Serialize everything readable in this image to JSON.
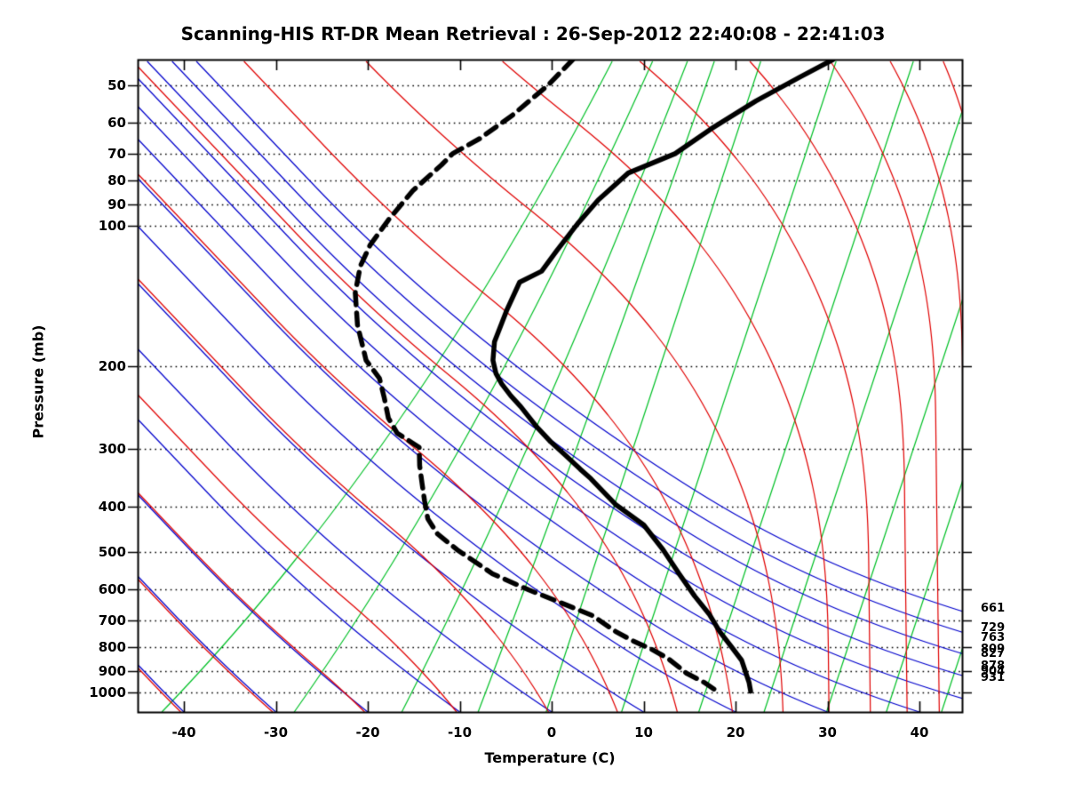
{
  "title": "Scanning-HIS RT-DR Mean Retrieval : 26-Sep-2012 22:40:08 - 22:41:03",
  "axes": {
    "x": {
      "label": "Temperature (C)",
      "ticks": [
        -40,
        -30,
        -20,
        -10,
        0,
        10,
        20,
        30,
        40
      ],
      "range_c": [
        -45,
        45
      ]
    },
    "y": {
      "label": "Pressure (mb)",
      "ticks": [
        50,
        60,
        70,
        80,
        90,
        100,
        200,
        300,
        400,
        500,
        600,
        700,
        800,
        900,
        1000
      ],
      "range_mb": [
        44,
        1100
      ],
      "scale": "log",
      "gridline_style": "dotted"
    }
  },
  "side_pressure_labels": [
    661,
    729,
    763,
    809,
    827,
    878,
    904,
    931
  ],
  "colors": {
    "temperature_curve": "#000000",
    "dewpoint_curve": "#000000",
    "moist_family": "#e00000",
    "dry_family": "#0000cc",
    "mixing_family": "#00c026",
    "grid": "#000000",
    "frame": "#000000",
    "background": "#ffffff"
  },
  "chart_data": {
    "type": "line",
    "subtype": "skewt_log_p",
    "title": "Scanning-HIS RT-DR Mean Retrieval : 26-Sep-2012 22:40:08 - 22:41:03",
    "xlabel": "Temperature (C)",
    "ylabel": "Pressure (mb)",
    "x_range_c": [
      -45,
      45
    ],
    "pressure_range_mb": [
      44,
      1100
    ],
    "legend": "none",
    "grid": "horizontal dotted at pressure ticks",
    "series": [
      {
        "name": "temperature",
        "style": "solid",
        "points_p_t": [
          [
            44,
            7.2
          ],
          [
            48,
            4.2
          ],
          [
            54,
            0.3
          ],
          [
            62,
            -3.6
          ],
          [
            70,
            -6.6
          ],
          [
            77,
            -11.0
          ],
          [
            88,
            -13.3
          ],
          [
            99,
            -14.7
          ],
          [
            113,
            -16.0
          ],
          [
            125,
            -16.9
          ],
          [
            132,
            -18.9
          ],
          [
            152,
            -19.3
          ],
          [
            177,
            -19.5
          ],
          [
            194,
            -19.0
          ],
          [
            207,
            -18.2
          ],
          [
            218,
            -17.2
          ],
          [
            231,
            -15.8
          ],
          [
            244,
            -14.3
          ],
          [
            270,
            -11.8
          ],
          [
            290,
            -9.8
          ],
          [
            310,
            -7.7
          ],
          [
            332,
            -5.6
          ],
          [
            348,
            -4.1
          ],
          [
            367,
            -2.6
          ],
          [
            395,
            -0.5
          ],
          [
            437,
            3.3
          ],
          [
            494,
            6.3
          ],
          [
            556,
            8.9
          ],
          [
            621,
            11.4
          ],
          [
            678,
            13.6
          ],
          [
            740,
            15.4
          ],
          [
            797,
            17.2
          ],
          [
            852,
            18.8
          ],
          [
            950,
            20.4
          ],
          [
            993,
            20.9
          ]
        ]
      },
      {
        "name": "dewpoint",
        "style": "dashed",
        "points_p_t": [
          [
            44,
            -21.1
          ],
          [
            50,
            -22.9
          ],
          [
            58,
            -25.7
          ],
          [
            65,
            -28.4
          ],
          [
            70,
            -30.8
          ],
          [
            74,
            -31.6
          ],
          [
            84,
            -33.8
          ],
          [
            97,
            -35.4
          ],
          [
            110,
            -36.5
          ],
          [
            122,
            -36.8
          ],
          [
            139,
            -36.4
          ],
          [
            163,
            -35.0
          ],
          [
            194,
            -32.8
          ],
          [
            212,
            -30.7
          ],
          [
            233,
            -29.5
          ],
          [
            258,
            -28.3
          ],
          [
            278,
            -26.8
          ],
          [
            298,
            -23.9
          ],
          [
            326,
            -23.2
          ],
          [
            356,
            -22.3
          ],
          [
            388,
            -21.4
          ],
          [
            424,
            -20.4
          ],
          [
            457,
            -18.8
          ],
          [
            494,
            -16.1
          ],
          [
            556,
            -11.4
          ],
          [
            602,
            -6.9
          ],
          [
            648,
            -2.3
          ],
          [
            684,
            1.0
          ],
          [
            740,
            4.1
          ],
          [
            773,
            6.2
          ],
          [
            807,
            8.6
          ],
          [
            844,
            10.7
          ],
          [
            909,
            13.3
          ],
          [
            950,
            15.5
          ],
          [
            984,
            16.9
          ]
        ]
      }
    ],
    "background_isopleths": {
      "dry_family_bottom_temps_c": [
        -90,
        -80,
        -70,
        -60,
        -50,
        -40,
        -30,
        -20,
        -10,
        0,
        10,
        20,
        30,
        40,
        50,
        60,
        70,
        80,
        90
      ],
      "moist_family_bottom_temps_c": [
        -90,
        -80,
        -70,
        -60,
        -50,
        -40,
        -30,
        -20,
        -10,
        0,
        7.5,
        14,
        20,
        25.5,
        30.5,
        35,
        39,
        42.5,
        45.5,
        48.5,
        51.5,
        55
      ],
      "mixing_family_bottom_x_c": [
        -42.4,
        -28.0,
        -16.3,
        -8.0,
        -0.6,
        7.6,
        16.0,
        23.1,
        29.9,
        36.4,
        42.4
      ]
    },
    "side_pressure_labels_mb": [
      661,
      729,
      763,
      809,
      827,
      878,
      904,
      931
    ]
  }
}
